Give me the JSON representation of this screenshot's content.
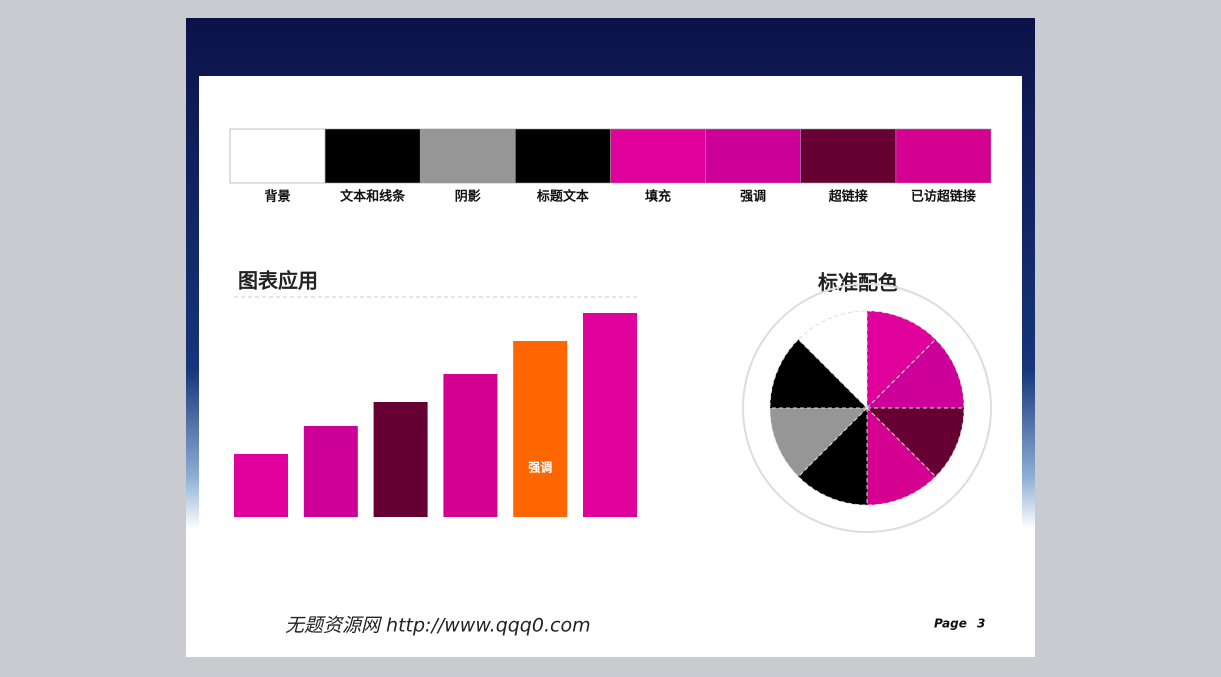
{
  "palette": {
    "swatches": [
      {
        "label": "背景",
        "color": "#ffffff"
      },
      {
        "label": "文本和线条",
        "color": "#000000"
      },
      {
        "label": "阴影",
        "color": "#969696"
      },
      {
        "label": "标题文本",
        "color": "#000000"
      },
      {
        "label": "填充",
        "color": "#e0009c"
      },
      {
        "label": "强调",
        "color": "#cc0099"
      },
      {
        "label": "超链接",
        "color": "#660033"
      },
      {
        "label": "已访超链接",
        "color": "#d4008f"
      }
    ]
  },
  "chart_data": [
    {
      "type": "bar",
      "title": "图表应用",
      "annotation": "强调",
      "values": [
        63,
        91,
        115,
        143,
        176,
        204
      ],
      "colors": [
        "#e0009c",
        "#cc0099",
        "#660033",
        "#d4008f",
        "#ff6600",
        "#e0009c"
      ],
      "ylim": [
        0,
        204
      ]
    },
    {
      "type": "pie",
      "title": "标准配色",
      "values": [
        12.5,
        12.5,
        12.5,
        12.5,
        12.5,
        12.5,
        12.5,
        12.5
      ],
      "colors": [
        "#e0009c",
        "#cc0099",
        "#660033",
        "#d4008f",
        "#000000",
        "#969696",
        "#000000",
        "#ffffff"
      ]
    }
  ],
  "footer": {
    "site": "无题资源网  http://www.qqq0.com",
    "page_label": "Page",
    "page_number": 3
  }
}
